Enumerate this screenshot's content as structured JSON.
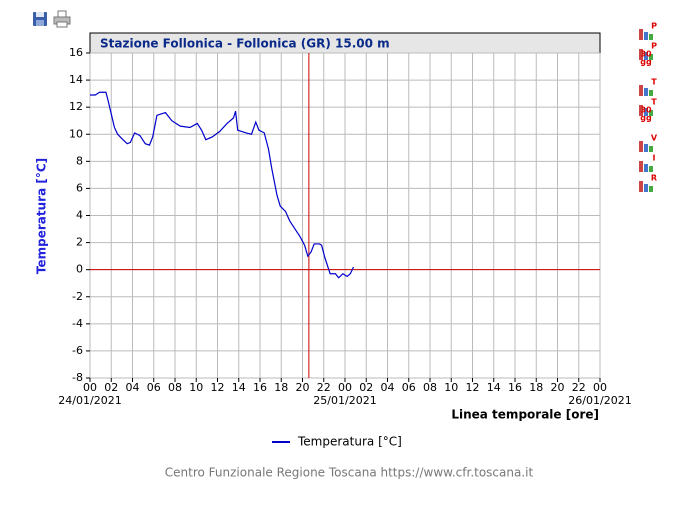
{
  "chart_data": {
    "type": "line",
    "title": "Stazione Follonica - Follonica (GR) 15.00 m",
    "ylabel": "Temperatura [°C]",
    "xlabel": "Linea temporale [ore]",
    "x": [
      0,
      0.5,
      0.9,
      1.5,
      1.7,
      2.0,
      2.3,
      2.6,
      3.1,
      3.5,
      3.8,
      4.2,
      4.7,
      5.2,
      5.6,
      5.9,
      6.3,
      7.1,
      7.7,
      8.5,
      9.4,
      10.1,
      10.5,
      10.9,
      11.5,
      12.2,
      12.9,
      13.5,
      13.7,
      13.9,
      14.3,
      14.7,
      15.2,
      15.6,
      15.9,
      16.4,
      16.8,
      17.1,
      17.6,
      17.9,
      18.4,
      18.8,
      19.3,
      19.8,
      20.2,
      20.5,
      20.8,
      21.1,
      21.6,
      21.8,
      22.1,
      22.6,
      23.1,
      23.4,
      23.8,
      24.2,
      24.5,
      24.8
    ],
    "series": [
      {
        "name": "Temperatura [°C]",
        "color": "#0000cc",
        "values": [
          12.9,
          12.9,
          13.1,
          13.1,
          12.5,
          11.5,
          10.5,
          10.0,
          9.6,
          9.3,
          9.4,
          10.1,
          9.9,
          9.3,
          9.2,
          9.8,
          11.4,
          11.6,
          11.0,
          10.6,
          10.5,
          10.8,
          10.3,
          9.6,
          9.8,
          10.2,
          10.8,
          11.2,
          11.7,
          10.3,
          10.2,
          10.1,
          10.0,
          10.9,
          10.3,
          10.1,
          8.9,
          7.5,
          5.5,
          4.7,
          4.3,
          3.6,
          3.0,
          2.4,
          1.8,
          1.0,
          1.3,
          1.9,
          1.9,
          1.8,
          0.9,
          -0.3,
          -0.3,
          -0.6,
          -0.3,
          -0.5,
          -0.3,
          0.2
        ]
      }
    ],
    "xlim": [
      0,
      48
    ],
    "xticks": [
      {
        "value": 0,
        "label": "00"
      },
      {
        "value": 2,
        "label": "02"
      },
      {
        "value": 4,
        "label": "04"
      },
      {
        "value": 6,
        "label": "06"
      },
      {
        "value": 8,
        "label": "08"
      },
      {
        "value": 10,
        "label": "10"
      },
      {
        "value": 12,
        "label": "12"
      },
      {
        "value": 14,
        "label": "14"
      },
      {
        "value": 16,
        "label": "16"
      },
      {
        "value": 18,
        "label": "18"
      },
      {
        "value": 20,
        "label": "20"
      },
      {
        "value": 22,
        "label": "22"
      },
      {
        "value": 24,
        "label": "00"
      },
      {
        "value": 26,
        "label": "02"
      },
      {
        "value": 28,
        "label": "04"
      },
      {
        "value": 30,
        "label": "06"
      },
      {
        "value": 32,
        "label": "08"
      },
      {
        "value": 34,
        "label": "10"
      },
      {
        "value": 36,
        "label": "12"
      },
      {
        "value": 38,
        "label": "14"
      },
      {
        "value": 40,
        "label": "16"
      },
      {
        "value": 42,
        "label": "18"
      },
      {
        "value": 44,
        "label": "20"
      },
      {
        "value": 46,
        "label": "22"
      },
      {
        "value": 48,
        "label": "00"
      }
    ],
    "date_labels": [
      {
        "value": 0,
        "label": "24/01/2021"
      },
      {
        "value": 24,
        "label": "25/01/2021"
      },
      {
        "value": 48,
        "label": "26/01/2021"
      }
    ],
    "ylim": [
      -8,
      16
    ],
    "yticks": [
      -8,
      -6,
      -4,
      -2,
      0,
      2,
      4,
      6,
      8,
      10,
      12,
      14,
      16
    ],
    "grid": true,
    "reference_lines": {
      "x": 20.6,
      "y": 0,
      "color": "#cc0000"
    }
  },
  "footer": "Centro Funzionale Regione Toscana https://www.cfr.toscana.it",
  "side_buttons": [
    [
      "P"
    ],
    [
      "P",
      "30",
      "gg"
    ],
    [
      "T"
    ],
    [
      "T",
      "30",
      "gg"
    ],
    [
      "V"
    ],
    [
      "I"
    ],
    [
      "R"
    ]
  ]
}
